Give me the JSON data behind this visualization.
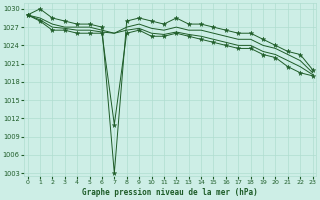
{
  "xlabel": "Graphe pression niveau de la mer (hPa)",
  "bg_color": "#cdeee6",
  "line_color": "#1e5c28",
  "grid_color": "#b0ddd0",
  "yticks": [
    1003,
    1006,
    1009,
    1012,
    1015,
    1018,
    1021,
    1024,
    1027,
    1030
  ],
  "xticks": [
    0,
    1,
    2,
    3,
    4,
    5,
    6,
    7,
    8,
    9,
    10,
    11,
    12,
    13,
    14,
    15,
    16,
    17,
    18,
    19,
    20,
    21,
    22,
    23
  ],
  "ylim": [
    1002.5,
    1031
  ],
  "xlim": [
    -0.3,
    23.3
  ],
  "s_high": [
    1029,
    1030,
    1028.5,
    1028,
    1027.5,
    1027.5,
    1027,
    1003,
    1028,
    1028.5,
    1028,
    1027.5,
    1028.5,
    1027.5,
    1027.5,
    1027,
    1026.5,
    1026,
    1026,
    1025,
    1024,
    1023,
    1022.5,
    1020
  ],
  "s_low": [
    1029,
    1028,
    1026.5,
    1026.5,
    1026,
    1026,
    1026,
    1011,
    1026,
    1026.5,
    1025.5,
    1025.5,
    1026,
    1025.5,
    1025,
    1024.5,
    1024,
    1023.5,
    1023.5,
    1022.5,
    1022,
    1020.5,
    1019.5,
    1019
  ],
  "s_trend1": [
    1029,
    1028.5,
    1027.5,
    1027,
    1027,
    1027,
    1026.5,
    1026,
    1027,
    1027.5,
    1026.8,
    1026.5,
    1027,
    1026.5,
    1026.5,
    1026,
    1025.5,
    1025,
    1025,
    1024,
    1023.5,
    1022.5,
    1021.5,
    1019.5
  ],
  "s_trend2": [
    1029,
    1028.2,
    1027,
    1026.8,
    1026.5,
    1026.5,
    1026.2,
    1026,
    1026.5,
    1026.8,
    1026,
    1025.8,
    1026.2,
    1025.8,
    1025.5,
    1025,
    1024.5,
    1024,
    1024,
    1023,
    1022.5,
    1021.5,
    1020.5,
    1019.2
  ]
}
